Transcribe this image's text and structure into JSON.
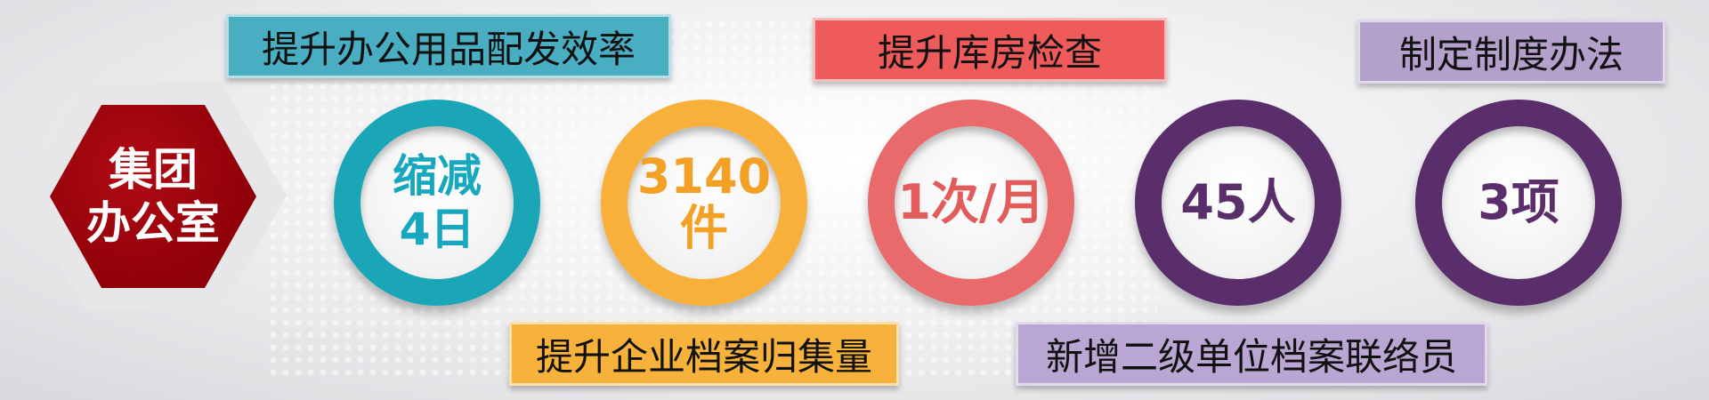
{
  "hexagon": {
    "title_line1": "集团",
    "title_line2": "办公室"
  },
  "labels": [
    {
      "text": "提升办公用品配发效率",
      "color": "#4aaec2"
    },
    {
      "text": "提升库房检查",
      "color": "#ef5a5a"
    },
    {
      "text": "制定制度办法",
      "color": "#b3a1cc"
    },
    {
      "text": "提升企业档案归集量",
      "color": "#f6b23a"
    },
    {
      "text": "新增二级单位档案联络员",
      "color": "#b9a6d3"
    }
  ],
  "rings": [
    {
      "line1": "缩减",
      "line2": "4日",
      "ring_color": "#1aa6b7",
      "text_color": "#17a8bf"
    },
    {
      "line1": "3140件",
      "ring_color": "#f8b03b",
      "text_color": "#f2a126"
    },
    {
      "line1": "1次/月",
      "ring_color": "#e86a6a",
      "text_color": "#e25c5c"
    },
    {
      "line1": "45人",
      "ring_color": "#5a2e6b",
      "text_color": "#5a2e6b"
    },
    {
      "line1": "3项",
      "ring_color": "#5a2e6b",
      "text_color": "#5a2e6b"
    }
  ]
}
